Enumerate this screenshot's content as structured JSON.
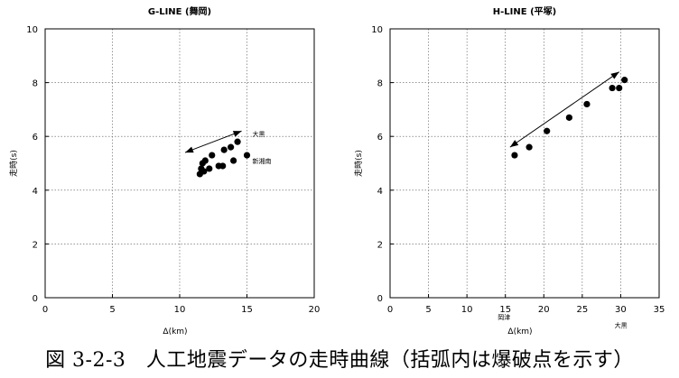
{
  "chart_data": [
    {
      "type": "scatter",
      "title": "G-LINE (舞岡)",
      "xlabel": "Δ(km)",
      "ylabel": "走時(s)",
      "xlim": [
        0,
        20
      ],
      "ylim": [
        0,
        10
      ],
      "xticks": [
        0,
        5,
        10,
        15,
        20
      ],
      "yticks": [
        0,
        2,
        4,
        6,
        8,
        10
      ],
      "grid": true,
      "points": [
        {
          "x": 11.5,
          "y": 4.6
        },
        {
          "x": 11.6,
          "y": 4.8
        },
        {
          "x": 11.7,
          "y": 5.0
        },
        {
          "x": 11.8,
          "y": 4.7
        },
        {
          "x": 11.9,
          "y": 5.1
        },
        {
          "x": 12.2,
          "y": 4.8
        },
        {
          "x": 12.4,
          "y": 5.3
        },
        {
          "x": 12.9,
          "y": 4.9
        },
        {
          "x": 13.2,
          "y": 4.9
        },
        {
          "x": 13.3,
          "y": 5.5
        },
        {
          "x": 13.8,
          "y": 5.6
        },
        {
          "x": 14.0,
          "y": 5.1
        },
        {
          "x": 14.3,
          "y": 5.8
        },
        {
          "x": 15.0,
          "y": 5.3
        }
      ],
      "arrow": {
        "from": [
          10.4,
          5.4
        ],
        "to": [
          14.6,
          6.2
        ]
      },
      "annotations": [
        {
          "text": "大黒",
          "x": 15.4,
          "y": 6.0
        },
        {
          "text": "新湘南",
          "x": 15.4,
          "y": 5.0
        }
      ]
    },
    {
      "type": "scatter",
      "title": "H-LINE (平塚)",
      "xlabel": "Δ(km)",
      "ylabel": "走時(s)",
      "xlim": [
        0,
        35
      ],
      "ylim": [
        0,
        10
      ],
      "xticks": [
        0,
        5,
        10,
        15,
        20,
        25,
        30,
        35
      ],
      "yticks": [
        0,
        2,
        4,
        6,
        8,
        10
      ],
      "grid": true,
      "points": [
        {
          "x": 16.2,
          "y": 5.3
        },
        {
          "x": 18.1,
          "y": 5.6
        },
        {
          "x": 20.4,
          "y": 6.2
        },
        {
          "x": 23.3,
          "y": 6.7
        },
        {
          "x": 25.6,
          "y": 7.2
        },
        {
          "x": 28.9,
          "y": 7.8
        },
        {
          "x": 29.8,
          "y": 7.8
        },
        {
          "x": 30.5,
          "y": 8.1
        }
      ],
      "arrow": {
        "from": [
          15.6,
          5.6
        ],
        "to": [
          29.8,
          8.4
        ]
      },
      "annotations": [
        {
          "text": "岡津",
          "x": 14.0,
          "y": -0.8
        },
        {
          "text": "大黒",
          "x": 29.2,
          "y": -1.1
        }
      ]
    }
  ],
  "caption": "図 3-2-3　人工地震データの走時曲線（括弧内は爆破点を示す）"
}
